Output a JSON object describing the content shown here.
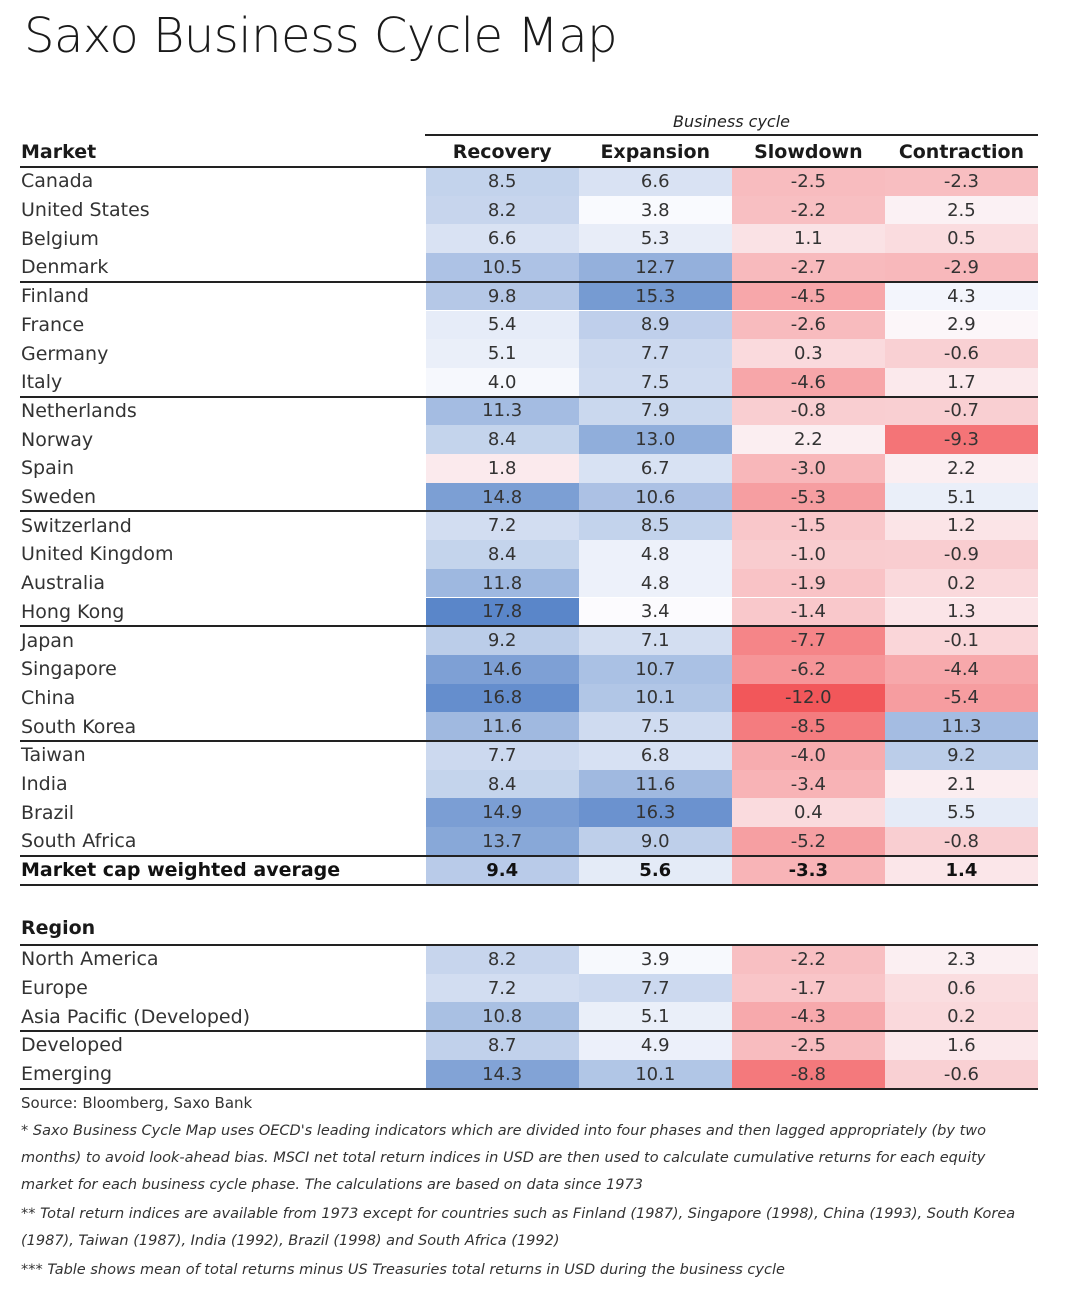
{
  "title": "Saxo Business Cycle Map",
  "chart_data": {
    "type": "heatmap",
    "title": "Saxo Business Cycle Map",
    "column_group_label": "Business cycle",
    "columns": [
      "Recovery",
      "Expansion",
      "Slowdown",
      "Contraction"
    ],
    "market_header": "Market",
    "markets": [
      {
        "name": "Canada",
        "values": [
          8.5,
          6.6,
          -2.5,
          -2.3
        ]
      },
      {
        "name": "United States",
        "values": [
          8.2,
          3.8,
          -2.2,
          2.5
        ]
      },
      {
        "name": "Belgium",
        "values": [
          6.6,
          5.3,
          1.1,
          0.5
        ]
      },
      {
        "name": "Denmark",
        "values": [
          10.5,
          12.7,
          -2.7,
          -2.9
        ]
      },
      {
        "name": "Finland",
        "values": [
          9.8,
          15.3,
          -4.5,
          4.3
        ]
      },
      {
        "name": "France",
        "values": [
          5.4,
          8.9,
          -2.6,
          2.9
        ]
      },
      {
        "name": "Germany",
        "values": [
          5.1,
          7.7,
          0.3,
          -0.6
        ]
      },
      {
        "name": "Italy",
        "values": [
          4.0,
          7.5,
          -4.6,
          1.7
        ]
      },
      {
        "name": "Netherlands",
        "values": [
          11.3,
          7.9,
          -0.8,
          -0.7
        ]
      },
      {
        "name": "Norway",
        "values": [
          8.4,
          13.0,
          2.2,
          -9.3
        ]
      },
      {
        "name": "Spain",
        "values": [
          1.8,
          6.7,
          -3.0,
          2.2
        ]
      },
      {
        "name": "Sweden",
        "values": [
          14.8,
          10.6,
          -5.3,
          5.1
        ]
      },
      {
        "name": "Switzerland",
        "values": [
          7.2,
          8.5,
          -1.5,
          1.2
        ]
      },
      {
        "name": "United Kingdom",
        "values": [
          8.4,
          4.8,
          -1.0,
          -0.9
        ]
      },
      {
        "name": "Australia",
        "values": [
          11.8,
          4.8,
          -1.9,
          0.2
        ]
      },
      {
        "name": "Hong Kong",
        "values": [
          17.8,
          3.4,
          -1.4,
          1.3
        ]
      },
      {
        "name": "Japan",
        "values": [
          9.2,
          7.1,
          -7.7,
          -0.1
        ]
      },
      {
        "name": "Singapore",
        "values": [
          14.6,
          10.7,
          -6.2,
          -4.4
        ]
      },
      {
        "name": "China",
        "values": [
          16.8,
          10.1,
          -12.0,
          -5.4
        ]
      },
      {
        "name": "South Korea",
        "values": [
          11.6,
          7.5,
          -8.5,
          11.3
        ]
      },
      {
        "name": "Taiwan",
        "values": [
          7.7,
          6.8,
          -4.0,
          9.2
        ]
      },
      {
        "name": "India",
        "values": [
          8.4,
          11.6,
          -3.4,
          2.1
        ]
      },
      {
        "name": "Brazil",
        "values": [
          14.9,
          16.3,
          0.4,
          5.5
        ]
      },
      {
        "name": "South Africa",
        "values": [
          13.7,
          9.0,
          -5.2,
          -0.8
        ]
      }
    ],
    "average": {
      "name": "Market cap weighted average",
      "values": [
        9.4,
        5.6,
        -3.3,
        1.4
      ]
    },
    "region_header": "Region",
    "regions": [
      {
        "name": "North America",
        "values": [
          8.2,
          3.9,
          -2.2,
          2.3
        ]
      },
      {
        "name": "Europe",
        "values": [
          7.2,
          7.7,
          -1.7,
          0.6
        ]
      },
      {
        "name": "Asia Pacific (Developed)",
        "values": [
          10.8,
          5.1,
          -4.3,
          0.2
        ]
      },
      {
        "name": "Developed",
        "values": [
          8.7,
          4.9,
          -2.5,
          1.6
        ]
      },
      {
        "name": "Emerging",
        "values": [
          14.3,
          10.1,
          -8.8,
          -0.6
        ]
      }
    ],
    "color_scale": {
      "low": "#f2575a",
      "mid": "#fcfcff",
      "high": "#5a86c9"
    }
  },
  "notes": {
    "source": "Source: Bloomberg, Saxo Bank",
    "footnote1": "* Saxo Business Cycle Map uses OECD's leading indicators which are divided into four phases and then lagged appropriately (by two months) to avoid look-ahead bias. MSCI net total return indices in USD are then used to calculate cumulative returns for each equity market for each business cycle phase. The calculations are based on data since 1973",
    "footnote2": "** Total return indices are available from 1973 except for countries such as Finland (1987), Singapore (1998), China (1993), South Korea (1987), Taiwan (1987), India (1992), Brazil (1998) and South Africa (1992)",
    "footnote3": "*** Table shows mean of total returns minus US Treasuries total returns in USD during the business cycle"
  }
}
